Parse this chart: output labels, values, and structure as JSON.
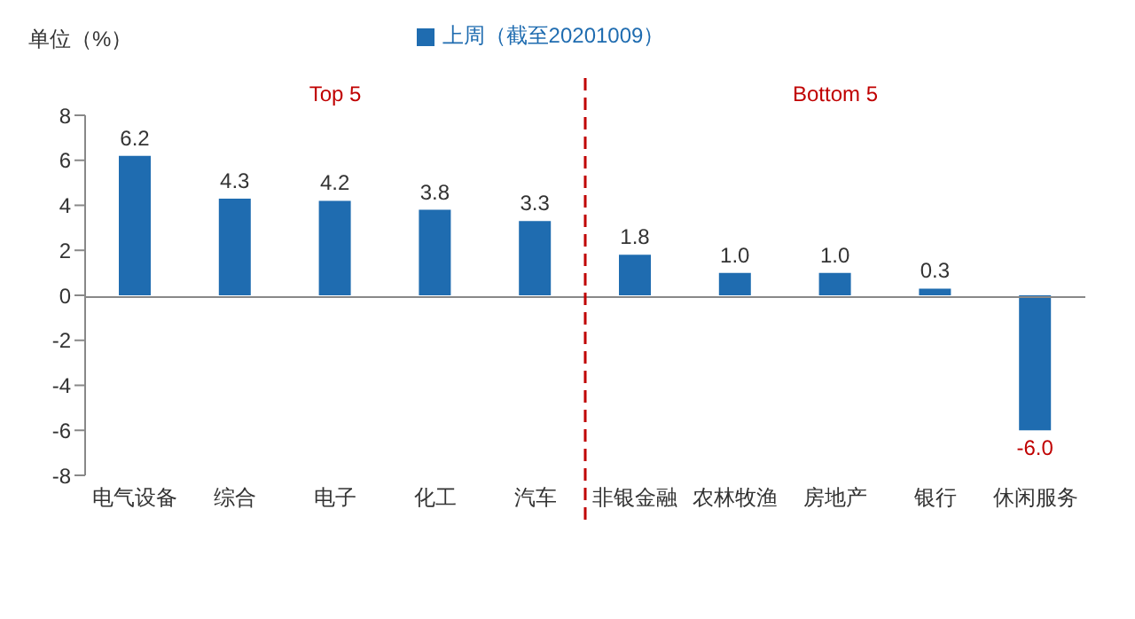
{
  "chart_data": {
    "type": "bar",
    "ylabel": "单位（%）",
    "categories": [
      "电气设备",
      "综合",
      "电子",
      "化工",
      "汽车",
      "非银金融",
      "农林牧渔",
      "房地产",
      "银行",
      "休闲服务"
    ],
    "series": [
      {
        "name": "上周（截至20201009）",
        "color": "#1f6cb0",
        "values": [
          6.2,
          4.3,
          4.2,
          3.8,
          3.3,
          1.8,
          1.0,
          1.0,
          0.3,
          -6.0
        ],
        "value_labels": [
          "6.2",
          "4.3",
          "4.2",
          "3.8",
          "3.3",
          "1.8",
          "1.0",
          "1.0",
          "0.3",
          "-6.0"
        ]
      }
    ],
    "ylim": [
      -8,
      8
    ],
    "yticks": [
      -8,
      -6,
      -4,
      -2,
      0,
      2,
      4,
      6,
      8
    ],
    "legend": "top",
    "annotations": [
      "Top 5",
      "Bottom 5"
    ]
  }
}
